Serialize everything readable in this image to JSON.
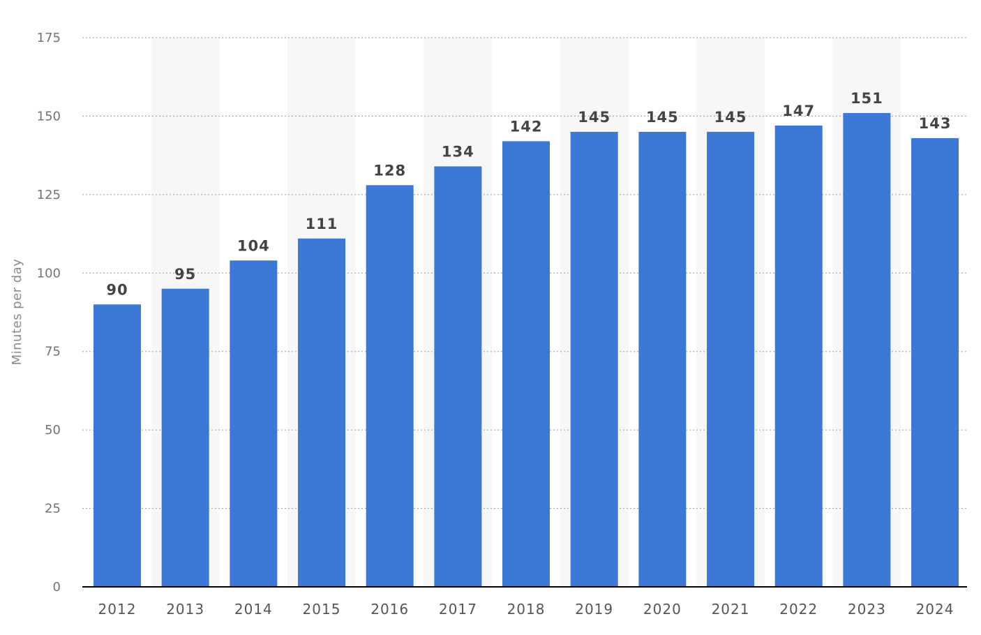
{
  "chart_data": {
    "type": "bar",
    "title": "",
    "xlabel": "",
    "ylabel": "Minutes per day",
    "ylim": [
      0,
      175
    ],
    "yticks": [
      0,
      25,
      50,
      75,
      100,
      125,
      150,
      175
    ],
    "grid": true,
    "legend": "none",
    "bar_color": "#3c79d6",
    "band_color": "#f7f7f7",
    "categories": [
      "2012",
      "2013",
      "2014",
      "2015",
      "2016",
      "2017",
      "2018",
      "2019",
      "2020",
      "2021",
      "2022",
      "2023",
      "2024"
    ],
    "values": [
      90,
      95,
      104,
      111,
      128,
      134,
      142,
      145,
      145,
      145,
      147,
      151,
      143
    ],
    "data_labels": [
      "90",
      "95",
      "104",
      "111",
      "128",
      "134",
      "142",
      "145",
      "145",
      "145",
      "147",
      "151",
      "143"
    ]
  }
}
